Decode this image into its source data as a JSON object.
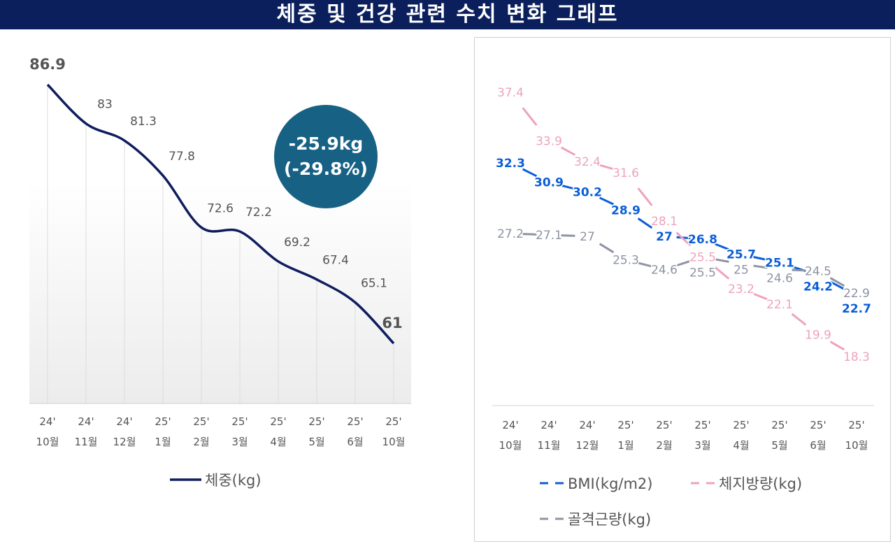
{
  "title": "체중 및 건강 관련 수치 변화 그래프",
  "badge": {
    "line1": "-25.9kg",
    "line2": "(-29.8%)"
  },
  "chart_data": [
    {
      "type": "line",
      "categories": [
        [
          "24'",
          "10월"
        ],
        [
          "24'",
          "11월"
        ],
        [
          "24'",
          "12월"
        ],
        [
          "25'",
          "1월"
        ],
        [
          "25'",
          "2월"
        ],
        [
          "25'",
          "3월"
        ],
        [
          "25'",
          "4월"
        ],
        [
          "25'",
          "5월"
        ],
        [
          "25'",
          "6월"
        ],
        [
          "25'",
          "10월"
        ]
      ],
      "series": [
        {
          "name": "체중(kg)",
          "color": "#0f1d5e",
          "values": [
            86.9,
            83,
            81.3,
            77.8,
            72.6,
            72.2,
            69.2,
            67.4,
            65.1,
            61
          ]
        }
      ],
      "legend": "bottom",
      "grid": "vertical"
    },
    {
      "type": "line",
      "categories": [
        [
          "24'",
          "10월"
        ],
        [
          "24'",
          "11월"
        ],
        [
          "24'",
          "12월"
        ],
        [
          "25'",
          "1월"
        ],
        [
          "25'",
          "2월"
        ],
        [
          "25'",
          "3월"
        ],
        [
          "25'",
          "4월"
        ],
        [
          "25'",
          "5월"
        ],
        [
          "25'",
          "6월"
        ],
        [
          "25'",
          "10월"
        ]
      ],
      "series": [
        {
          "name": "BMI(kg/m2)",
          "color": "#0b5ed7",
          "values": [
            32.3,
            30.9,
            30.2,
            28.9,
            27,
            26.8,
            25.7,
            25.1,
            24.2,
            22.7
          ]
        },
        {
          "name": "체지방량(kg)",
          "color": "#eda3bd",
          "values": [
            37.4,
            33.9,
            32.4,
            31.6,
            28.1,
            25.5,
            23.2,
            22.1,
            19.9,
            18.3
          ]
        },
        {
          "name": "골격근량(kg)",
          "color": "#8d93a3",
          "values": [
            27.2,
            27.1,
            27,
            25.3,
            24.6,
            25.5,
            25,
            24.6,
            24.5,
            22.9
          ]
        }
      ],
      "legend": "bottom",
      "line_style": "dashed"
    }
  ]
}
